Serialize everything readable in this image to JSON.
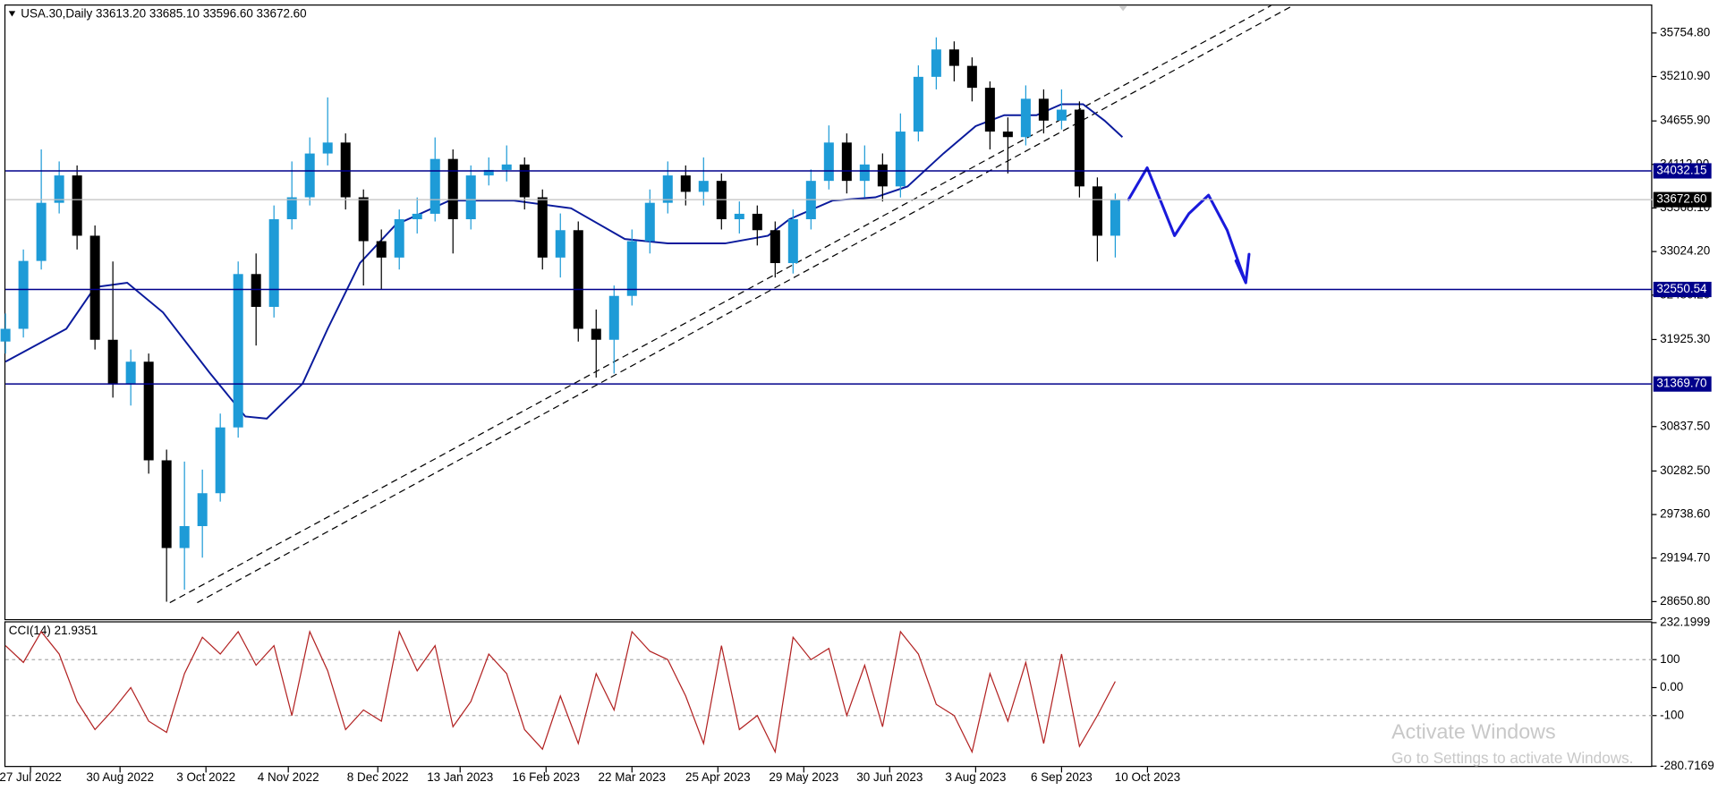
{
  "chart_data": [
    {
      "type": "candlestick",
      "title": "USA.30,Daily 33613.20 33685.10 33596.60 33672.60",
      "x": [
        0,
        5,
        10,
        15,
        20,
        25,
        30,
        35,
        40,
        45,
        50,
        55,
        60,
        65,
        70,
        75,
        80,
        85,
        90,
        95,
        100,
        105,
        110,
        115,
        120,
        125,
        130,
        135,
        140,
        145,
        150,
        155,
        160,
        165,
        170,
        175,
        180,
        185,
        190,
        195,
        200,
        205,
        210,
        215,
        220,
        225,
        230,
        235,
        240,
        245,
        250,
        255,
        260,
        265,
        270,
        275,
        280,
        285,
        290,
        295,
        300,
        305,
        310
      ],
      "open": [
        31900,
        32059,
        32907,
        33633,
        33975,
        33222,
        31922,
        31375,
        31648,
        30416,
        29320,
        29594,
        30005,
        30827,
        32743,
        32333,
        33428,
        33702,
        34249,
        34386,
        33702,
        33154,
        32949,
        33428,
        33496,
        34181,
        33428,
        33975,
        34044,
        34112,
        33702,
        32949,
        33291,
        32059,
        31922,
        32470,
        33154,
        33633,
        33975,
        33770,
        33907,
        33428,
        33496,
        33291,
        32880,
        33428,
        33907,
        34386,
        33907,
        34112,
        33838,
        34523,
        35207,
        35549,
        35344,
        35070,
        34523,
        34454,
        34933,
        34660,
        34797,
        33838,
        33222
      ],
      "high": [
        32250,
        33050,
        34300,
        34150,
        34100,
        33350,
        32900,
        31800,
        31750,
        30550,
        30400,
        30300,
        31000,
        32900,
        33000,
        33600,
        34150,
        34450,
        34950,
        34500,
        33800,
        33300,
        33550,
        33700,
        34450,
        34300,
        34100,
        34200,
        34350,
        34200,
        33800,
        33500,
        33400,
        32300,
        32600,
        33300,
        33800,
        34150,
        34100,
        34200,
        34000,
        33650,
        33600,
        33400,
        33550,
        34050,
        34600,
        34500,
        34350,
        34250,
        34750,
        35350,
        35700,
        35650,
        35450,
        35150,
        34700,
        35100,
        35050,
        35050,
        34900,
        33950,
        33750
      ],
      "low": [
        31750,
        31950,
        32800,
        33500,
        33050,
        31800,
        31200,
        31100,
        30250,
        28650,
        28800,
        29200,
        29900,
        30700,
        31850,
        32200,
        33300,
        33600,
        34100,
        33550,
        32600,
        32550,
        32800,
        33250,
        33400,
        33000,
        33300,
        33850,
        33900,
        33550,
        32800,
        32700,
        31900,
        31450,
        31500,
        32350,
        33000,
        33500,
        33600,
        33600,
        33300,
        33250,
        33100,
        32700,
        32750,
        33300,
        33800,
        33750,
        33700,
        33650,
        33700,
        34400,
        35050,
        35150,
        34900,
        34300,
        34000,
        34350,
        34500,
        34550,
        33700,
        32900,
        32950
      ],
      "close": [
        32059,
        32907,
        33633,
        33975,
        33222,
        31922,
        31375,
        31648,
        30416,
        29320,
        29594,
        30005,
        30827,
        32743,
        32333,
        33428,
        33702,
        34249,
        34386,
        33702,
        33154,
        32949,
        33428,
        33496,
        34181,
        33428,
        33975,
        34044,
        34112,
        33702,
        32949,
        33291,
        32059,
        31922,
        32470,
        33154,
        33633,
        33975,
        33770,
        33907,
        33428,
        33496,
        33291,
        32880,
        33428,
        33907,
        34386,
        33907,
        34112,
        33838,
        34523,
        35207,
        35549,
        35344,
        35070,
        34523,
        34454,
        34933,
        34660,
        34797,
        33838,
        33222,
        33672.6
      ],
      "up_color": "#1e9bd7",
      "down_color": "#000000",
      "moving_average": {
        "color": "#0a1a9c",
        "x": [
          0,
          17,
          25,
          34,
          44,
          57,
          67,
          73,
          83,
          90,
          99,
          109,
          124,
          142,
          158,
          173,
          185,
          201,
          213,
          219,
          231,
          243,
          252,
          262,
          271,
          279,
          288,
          295,
          301,
          307,
          312
        ],
        "values": [
          31648,
          32059,
          32579,
          32634,
          32264,
          31511,
          30964,
          30937,
          31375,
          32059,
          32880,
          33359,
          33661,
          33661,
          33565,
          33181,
          33126,
          33126,
          33222,
          33428,
          33661,
          33702,
          33838,
          34249,
          34591,
          34728,
          34728,
          34865,
          34865,
          34660,
          34454
        ]
      },
      "hlines": [
        34032.15,
        32550.54,
        {
          "value": 31369.7,
          "label": "31369.70"
        }
      ],
      "hline_color": "#00008b",
      "last_price": {
        "value": 33672.6,
        "label": "33672.60"
      },
      "xlim": [
        0,
        460
      ],
      "ylim": [
        28432,
        36097
      ],
      "yticks": [
        {
          "value": 35754.8,
          "label": "35754.80"
        },
        {
          "value": 35210.9,
          "label": "35210.90"
        },
        {
          "value": 34655.9,
          "label": "34655.90"
        },
        {
          "value": 34112.9,
          "label": "34112.90"
        },
        {
          "value": 33568.1,
          "label": "33568.10"
        },
        {
          "value": 33024.2,
          "label": "33024.20"
        },
        {
          "value": 32480.2,
          "label": "32480.20"
        },
        {
          "value": 31925.3,
          "label": "31925.30"
        },
        {
          "value": 30837.5,
          "label": "30837.50"
        },
        {
          "value": 30282.5,
          "label": "30282.50"
        },
        {
          "value": 29738.6,
          "label": "29738.60"
        },
        {
          "value": 29194.7,
          "label": "29194.70"
        },
        {
          "value": 28650.8,
          "label": "28650.80"
        }
      ],
      "xticks": [
        {
          "value": 7,
          "label": "27 Jul 2022"
        },
        {
          "value": 32,
          "label": "30 Aug 2022"
        },
        {
          "value": 56,
          "label": "3 Oct 2022"
        },
        {
          "value": 79,
          "label": "4 Nov 2022"
        },
        {
          "value": 104,
          "label": "8 Dec 2022"
        },
        {
          "value": 127,
          "label": "13 Jan 2023"
        },
        {
          "value": 151,
          "label": "16 Feb 2023"
        },
        {
          "value": 175,
          "label": "22 Mar 2023"
        },
        {
          "value": 199,
          "label": "25 Apr 2023"
        },
        {
          "value": 223,
          "label": "29 May 2023"
        },
        {
          "value": 247,
          "label": "30 Jun 2023"
        },
        {
          "value": 271,
          "label": "3 Aug 2023"
        },
        {
          "value": 295,
          "label": "6 Sep 2023"
        },
        {
          "value": 319,
          "label": "10 Oct 2023"
        }
      ]
    },
    {
      "type": "line",
      "title": "CCI(14) 21.9351",
      "x": [
        0,
        5,
        10,
        15,
        20,
        25,
        30,
        35,
        40,
        45,
        50,
        55,
        60,
        65,
        70,
        75,
        80,
        85,
        90,
        95,
        100,
        105,
        110,
        115,
        120,
        125,
        130,
        135,
        140,
        145,
        150,
        155,
        160,
        165,
        170,
        175,
        180,
        185,
        190,
        195,
        200,
        205,
        210,
        215,
        220,
        225,
        230,
        235,
        240,
        245,
        250,
        255,
        260,
        265,
        270,
        275,
        280,
        285,
        290,
        295,
        300,
        305,
        310
      ],
      "values": [
        150,
        90,
        200,
        120,
        -50,
        -150,
        -80,
        0,
        -120,
        -160,
        50,
        180,
        120,
        200,
        80,
        150,
        -100,
        200,
        60,
        -150,
        -80,
        -120,
        200,
        60,
        150,
        -140,
        -50,
        120,
        50,
        -150,
        -220,
        -30,
        -200,
        50,
        -80,
        200,
        130,
        100,
        -30,
        -200,
        150,
        -150,
        -100,
        -230,
        180,
        100,
        140,
        -100,
        80,
        -140,
        200,
        120,
        -60,
        -100,
        -230,
        50,
        -120,
        90,
        -200,
        120,
        -210,
        -100,
        21.9351
      ],
      "color": "#b22222",
      "levels": [
        100,
        -100
      ],
      "xlim": [
        0,
        460
      ],
      "ylim": [
        -284,
        237
      ],
      "yticks": [
        {
          "value": 232.1999,
          "label": "232.1999"
        },
        100,
        {
          "value": 0,
          "label": "0.00"
        },
        -100,
        {
          "value": -280.7169,
          "label": "-280.7169"
        }
      ]
    }
  ],
  "overlay": {
    "line1": "Activate Windows",
    "line2": "Go to Settings to activate Windows."
  }
}
